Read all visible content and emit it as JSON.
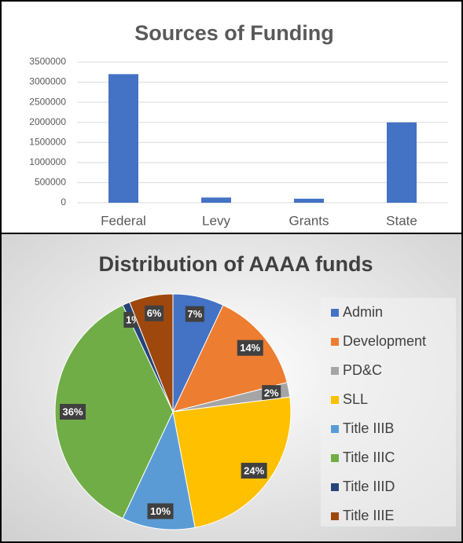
{
  "chart_data": [
    {
      "type": "bar",
      "title": "Sources of Funding",
      "categories": [
        "Federal",
        "Levy",
        "Grants",
        "State"
      ],
      "values": [
        3200000,
        130000,
        100000,
        2000000
      ],
      "color": "#4472c4",
      "ylim": [
        0,
        3500000
      ],
      "yticks": [
        0,
        500000,
        1000000,
        1500000,
        2000000,
        2500000,
        3000000,
        3500000
      ],
      "grid": true
    },
    {
      "type": "pie",
      "title": "Distribution of AAAA funds",
      "categories": [
        "Admin",
        "Development",
        "PD&C",
        "SLL",
        "Title IIIB",
        "Title IIIC",
        "Title IIID",
        "Title IIIE"
      ],
      "values": [
        7,
        14,
        2,
        24,
        10,
        36,
        1,
        6
      ],
      "value_labels": [
        "7%",
        "14%",
        "2%",
        "24%",
        "10%",
        "36%",
        "1%",
        "6%"
      ],
      "colors": [
        "#4472c4",
        "#ed7d31",
        "#a5a5a5",
        "#ffc000",
        "#5b9bd5",
        "#70ad47",
        "#264478",
        "#9e480e"
      ],
      "legend": "right"
    }
  ]
}
